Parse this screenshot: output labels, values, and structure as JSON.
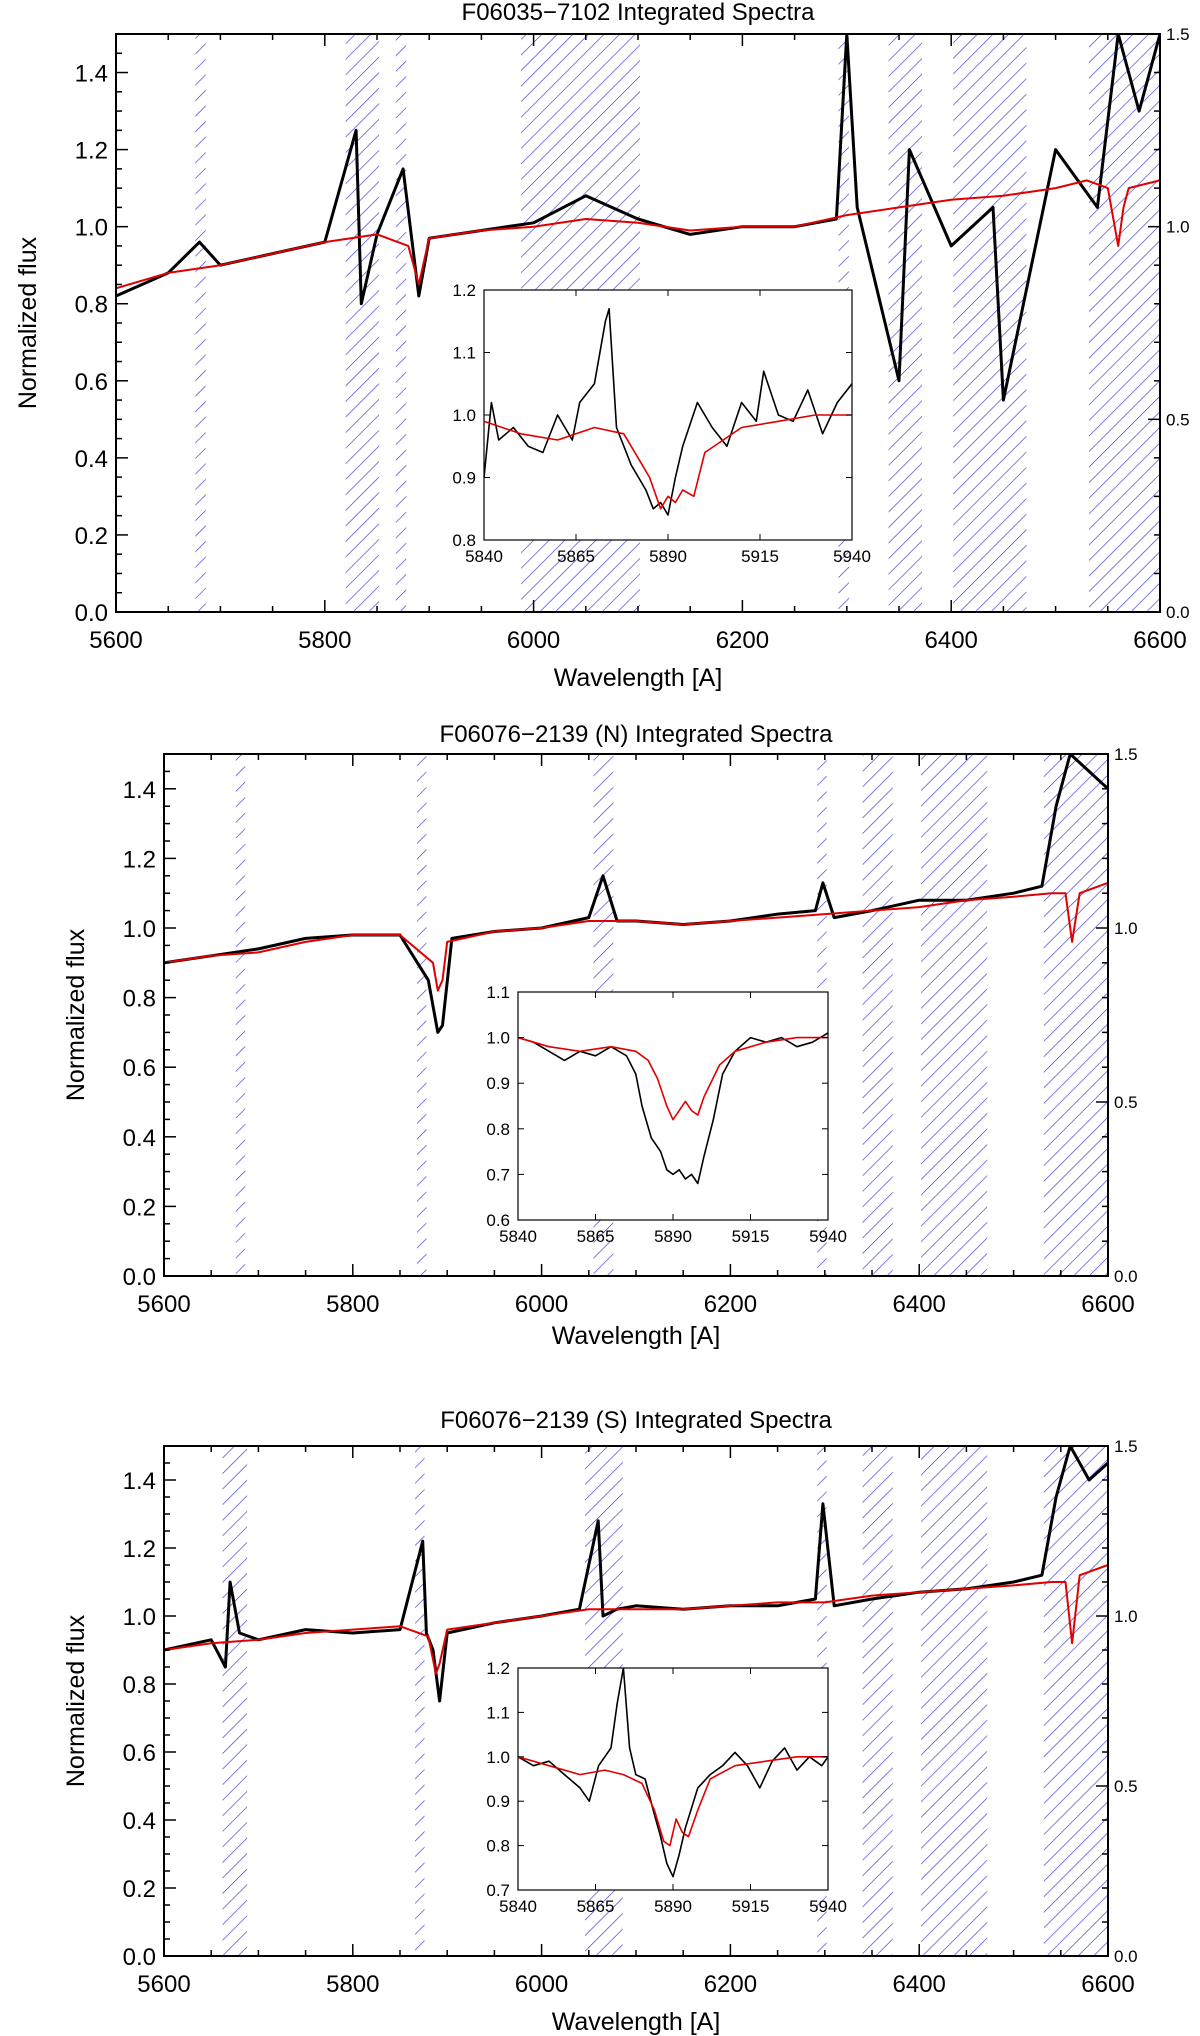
{
  "chart_data": [
    {
      "type": "line",
      "title": "F06035−7102 Integrated Spectra",
      "xlabel": "Wavelength [A]",
      "ylabel": "Normalized flux",
      "xlim": [
        5600,
        6600
      ],
      "ylim": [
        0,
        1.5
      ],
      "xticks": [
        "5600",
        "5800",
        "6000",
        "6200",
        "6400",
        "6600"
      ],
      "yticks": [
        "0.0",
        "0.2",
        "0.4",
        "0.6",
        "0.8",
        "1.0",
        "1.2",
        "1.4"
      ],
      "right_yticks": [
        "0.0",
        "0.5",
        "1.0",
        "1.5"
      ],
      "masked_regions": [
        [
          5676,
          5686
        ],
        [
          5820,
          5852
        ],
        [
          5868,
          5878
        ],
        [
          5988,
          6102
        ],
        [
          6292,
          6302
        ],
        [
          6340,
          6372
        ],
        [
          6402,
          6472
        ],
        [
          6532,
          6600
        ]
      ],
      "series": [
        {
          "name": "observed",
          "color": "#000000",
          "x": [
            5600,
            5650,
            5680,
            5700,
            5750,
            5800,
            5830,
            5835,
            5850,
            5875,
            5890,
            5900,
            5950,
            6000,
            6050,
            6100,
            6150,
            6200,
            6250,
            6290,
            6300,
            6310,
            6350,
            6360,
            6400,
            6440,
            6450,
            6500,
            6540,
            6560,
            6580,
            6600
          ],
          "y": [
            0.82,
            0.88,
            0.96,
            0.9,
            0.93,
            0.96,
            1.25,
            0.8,
            0.98,
            1.15,
            0.82,
            0.97,
            0.99,
            1.01,
            1.08,
            1.02,
            0.98,
            1.0,
            1.0,
            1.02,
            1.5,
            1.05,
            0.6,
            1.2,
            0.95,
            1.05,
            0.55,
            1.2,
            1.05,
            1.5,
            1.3,
            1.5
          ]
        },
        {
          "name": "model",
          "color": "#e00000",
          "x": [
            5600,
            5650,
            5700,
            5750,
            5800,
            5850,
            5880,
            5890,
            5900,
            5950,
            6000,
            6050,
            6100,
            6150,
            6200,
            6250,
            6300,
            6350,
            6400,
            6450,
            6500,
            6530,
            6550,
            6560,
            6565,
            6570,
            6600
          ],
          "y": [
            0.84,
            0.88,
            0.9,
            0.93,
            0.96,
            0.98,
            0.95,
            0.85,
            0.97,
            0.99,
            1.0,
            1.02,
            1.01,
            0.99,
            1.0,
            1.0,
            1.03,
            1.05,
            1.07,
            1.08,
            1.1,
            1.12,
            1.1,
            0.95,
            1.05,
            1.1,
            1.12
          ]
        }
      ],
      "inset": {
        "xlim": [
          5840,
          5940
        ],
        "ylim": [
          0.8,
          1.2
        ],
        "xticks": [
          "5840",
          "5865",
          "5890",
          "5915",
          "5940"
        ],
        "yticks": [
          "0.8",
          "0.9",
          "1.0",
          "1.1",
          "1.2"
        ],
        "series": [
          {
            "name": "observed",
            "color": "#000000",
            "x": [
              5840,
              5842,
              5844,
              5848,
              5852,
              5856,
              5860,
              5864,
              5866,
              5870,
              5873,
              5874,
              5876,
              5880,
              5884,
              5886,
              5888,
              5890,
              5892,
              5894,
              5898,
              5902,
              5906,
              5910,
              5914,
              5916,
              5920,
              5924,
              5928,
              5932,
              5936,
              5940
            ],
            "y": [
              0.9,
              1.02,
              0.96,
              0.98,
              0.95,
              0.94,
              1.0,
              0.96,
              1.02,
              1.05,
              1.15,
              1.17,
              0.98,
              0.92,
              0.88,
              0.85,
              0.86,
              0.84,
              0.9,
              0.95,
              1.02,
              0.98,
              0.95,
              1.02,
              0.99,
              1.07,
              1.0,
              0.99,
              1.04,
              0.97,
              1.02,
              1.05
            ]
          },
          {
            "name": "model",
            "color": "#e00000",
            "x": [
              5840,
              5850,
              5860,
              5870,
              5878,
              5882,
              5885,
              5888,
              5890,
              5892,
              5894,
              5897,
              5900,
              5910,
              5920,
              5930,
              5940
            ],
            "y": [
              0.99,
              0.97,
              0.96,
              0.98,
              0.97,
              0.93,
              0.9,
              0.85,
              0.87,
              0.86,
              0.88,
              0.87,
              0.94,
              0.98,
              0.99,
              1.0,
              1.0
            ]
          }
        ]
      }
    },
    {
      "type": "line",
      "title": "F06076−2139 (N) Integrated Spectra",
      "xlabel": "Wavelength [A]",
      "ylabel": "Normalized flux",
      "xlim": [
        5600,
        6600
      ],
      "ylim": [
        0,
        1.5
      ],
      "xticks": [
        "5600",
        "5800",
        "6000",
        "6200",
        "6400",
        "6600"
      ],
      "yticks": [
        "0.0",
        "0.2",
        "0.4",
        "0.6",
        "0.8",
        "1.0",
        "1.2",
        "1.4"
      ],
      "right_yticks": [
        "0.0",
        "0.5",
        "1.0",
        "1.5"
      ],
      "masked_regions": [
        [
          5676,
          5686
        ],
        [
          5868,
          5878
        ],
        [
          6055,
          6076
        ],
        [
          6292,
          6302
        ],
        [
          6340,
          6372
        ],
        [
          6402,
          6472
        ],
        [
          6532,
          6600
        ]
      ],
      "series": [
        {
          "name": "observed",
          "color": "#000000",
          "x": [
            5600,
            5650,
            5700,
            5750,
            5800,
            5850,
            5880,
            5890,
            5895,
            5905,
            5950,
            6000,
            6050,
            6065,
            6080,
            6100,
            6150,
            6200,
            6250,
            6290,
            6298,
            6310,
            6350,
            6400,
            6450,
            6500,
            6530,
            6545,
            6560,
            6580,
            6600
          ],
          "y": [
            0.9,
            0.92,
            0.94,
            0.97,
            0.98,
            0.98,
            0.85,
            0.7,
            0.72,
            0.97,
            0.99,
            1.0,
            1.03,
            1.15,
            1.02,
            1.02,
            1.01,
            1.02,
            1.04,
            1.05,
            1.13,
            1.03,
            1.05,
            1.08,
            1.08,
            1.1,
            1.12,
            1.35,
            1.5,
            1.45,
            1.4
          ]
        },
        {
          "name": "model",
          "color": "#e00000",
          "x": [
            5600,
            5650,
            5700,
            5750,
            5800,
            5850,
            5885,
            5890,
            5895,
            5900,
            5950,
            6000,
            6050,
            6100,
            6150,
            6200,
            6250,
            6300,
            6350,
            6400,
            6450,
            6500,
            6540,
            6555,
            6562,
            6570,
            6600
          ],
          "y": [
            0.9,
            0.92,
            0.93,
            0.96,
            0.98,
            0.98,
            0.9,
            0.82,
            0.85,
            0.96,
            0.99,
            1.0,
            1.02,
            1.02,
            1.01,
            1.02,
            1.03,
            1.04,
            1.05,
            1.06,
            1.08,
            1.09,
            1.1,
            1.1,
            0.96,
            1.1,
            1.13
          ]
        }
      ],
      "inset": {
        "xlim": [
          5840,
          5940
        ],
        "ylim": [
          0.6,
          1.1
        ],
        "xticks": [
          "5840",
          "5865",
          "5890",
          "5915",
          "5940"
        ],
        "yticks": [
          "0.6",
          "0.7",
          "0.8",
          "0.9",
          "1.0",
          "1.1"
        ],
        "series": [
          {
            "name": "observed",
            "color": "#000000",
            "x": [
              5840,
              5845,
              5850,
              5855,
              5860,
              5865,
              5870,
              5875,
              5878,
              5880,
              5883,
              5886,
              5888,
              5890,
              5892,
              5894,
              5896,
              5898,
              5900,
              5903,
              5906,
              5910,
              5915,
              5920,
              5925,
              5930,
              5935,
              5940
            ],
            "y": [
              1.0,
              0.99,
              0.97,
              0.95,
              0.97,
              0.96,
              0.98,
              0.96,
              0.92,
              0.85,
              0.78,
              0.75,
              0.71,
              0.7,
              0.71,
              0.69,
              0.7,
              0.68,
              0.74,
              0.82,
              0.92,
              0.97,
              1.0,
              0.99,
              1.0,
              0.98,
              0.99,
              1.01
            ]
          },
          {
            "name": "model",
            "color": "#e00000",
            "x": [
              5840,
              5850,
              5860,
              5870,
              5878,
              5882,
              5885,
              5888,
              5890,
              5892,
              5894,
              5896,
              5898,
              5900,
              5905,
              5910,
              5920,
              5930,
              5940
            ],
            "y": [
              1.0,
              0.98,
              0.97,
              0.98,
              0.97,
              0.95,
              0.91,
              0.85,
              0.82,
              0.84,
              0.86,
              0.84,
              0.83,
              0.87,
              0.94,
              0.97,
              0.99,
              1.0,
              1.0
            ]
          }
        ]
      }
    },
    {
      "type": "line",
      "title": "F06076−2139 (S) Integrated Spectra",
      "xlabel": "Wavelength [A]",
      "ylabel": "Normalized flux",
      "xlim": [
        5600,
        6600
      ],
      "ylim": [
        0,
        1.5
      ],
      "xticks": [
        "5600",
        "5800",
        "6000",
        "6200",
        "6400",
        "6600"
      ],
      "yticks": [
        "0.0",
        "0.2",
        "0.4",
        "0.6",
        "0.8",
        "1.0",
        "1.2",
        "1.4"
      ],
      "right_yticks": [
        "0.0",
        "0.5",
        "1.0",
        "1.5"
      ],
      "masked_regions": [
        [
          5662,
          5688
        ],
        [
          5866,
          5876
        ],
        [
          6046,
          6086
        ],
        [
          6292,
          6302
        ],
        [
          6340,
          6372
        ],
        [
          6402,
          6472
        ],
        [
          6532,
          6600
        ]
      ],
      "series": [
        {
          "name": "observed",
          "color": "#000000",
          "x": [
            5600,
            5650,
            5665,
            5670,
            5680,
            5700,
            5750,
            5800,
            5850,
            5874,
            5878,
            5885,
            5892,
            5900,
            5950,
            6000,
            6040,
            6060,
            6065,
            6080,
            6100,
            6150,
            6200,
            6250,
            6290,
            6298,
            6310,
            6350,
            6400,
            6450,
            6500,
            6530,
            6545,
            6560,
            6580,
            6600
          ],
          "y": [
            0.9,
            0.93,
            0.85,
            1.1,
            0.95,
            0.93,
            0.96,
            0.95,
            0.96,
            1.22,
            0.95,
            0.9,
            0.75,
            0.95,
            0.98,
            1.0,
            1.02,
            1.28,
            1.0,
            1.02,
            1.03,
            1.02,
            1.03,
            1.03,
            1.05,
            1.33,
            1.03,
            1.05,
            1.07,
            1.08,
            1.1,
            1.12,
            1.35,
            1.5,
            1.4,
            1.45
          ]
        },
        {
          "name": "model",
          "color": "#e00000",
          "x": [
            5600,
            5650,
            5700,
            5750,
            5800,
            5850,
            5880,
            5888,
            5892,
            5900,
            5950,
            6000,
            6050,
            6100,
            6150,
            6200,
            6250,
            6300,
            6350,
            6400,
            6450,
            6500,
            6540,
            6555,
            6562,
            6570,
            6600
          ],
          "y": [
            0.9,
            0.92,
            0.93,
            0.95,
            0.96,
            0.97,
            0.94,
            0.83,
            0.86,
            0.96,
            0.98,
            1.0,
            1.02,
            1.02,
            1.02,
            1.03,
            1.04,
            1.04,
            1.06,
            1.07,
            1.08,
            1.09,
            1.1,
            1.1,
            0.92,
            1.12,
            1.15
          ]
        }
      ],
      "inset": {
        "xlim": [
          5840,
          5940
        ],
        "ylim": [
          0.7,
          1.2
        ],
        "xticks": [
          "5840",
          "5865",
          "5890",
          "5915",
          "5940"
        ],
        "yticks": [
          "0.7",
          "0.8",
          "0.9",
          "1.0",
          "1.1",
          "1.2"
        ],
        "series": [
          {
            "name": "observed",
            "color": "#000000",
            "x": [
              5840,
              5845,
              5850,
              5855,
              5860,
              5863,
              5866,
              5870,
              5872,
              5874,
              5876,
              5878,
              5881,
              5884,
              5886,
              5888,
              5890,
              5892,
              5894,
              5898,
              5902,
              5906,
              5910,
              5914,
              5918,
              5922,
              5926,
              5930,
              5934,
              5938,
              5940
            ],
            "y": [
              1.0,
              0.98,
              0.99,
              0.96,
              0.93,
              0.9,
              0.98,
              1.02,
              1.12,
              1.2,
              1.02,
              0.96,
              0.95,
              0.87,
              0.82,
              0.76,
              0.73,
              0.78,
              0.84,
              0.93,
              0.96,
              0.98,
              1.01,
              0.98,
              0.93,
              0.99,
              1.02,
              0.97,
              1.0,
              0.98,
              1.0
            ]
          },
          {
            "name": "model",
            "color": "#e00000",
            "x": [
              5840,
              5850,
              5860,
              5868,
              5874,
              5880,
              5884,
              5887,
              5889,
              5891,
              5893,
              5895,
              5898,
              5902,
              5910,
              5920,
              5930,
              5940
            ],
            "y": [
              1.0,
              0.98,
              0.96,
              0.97,
              0.96,
              0.94,
              0.88,
              0.81,
              0.8,
              0.86,
              0.83,
              0.82,
              0.88,
              0.95,
              0.98,
              0.99,
              1.0,
              1.0
            ]
          }
        ]
      }
    }
  ]
}
